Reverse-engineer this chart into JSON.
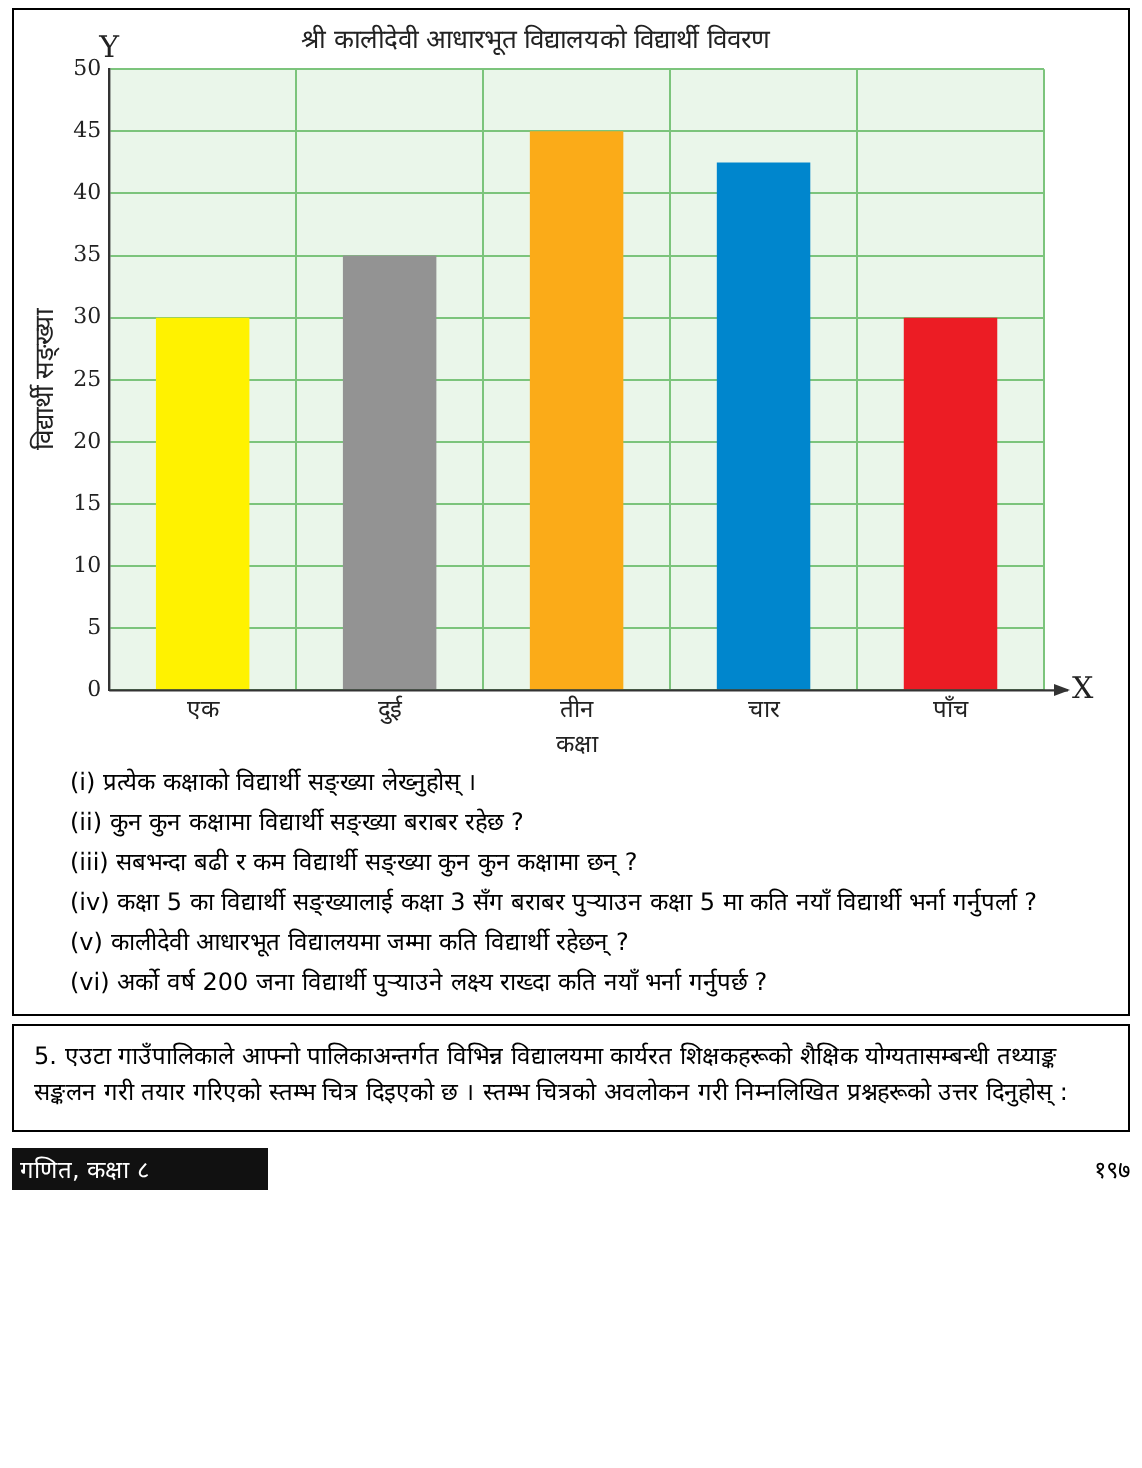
{
  "chart_data": {
    "type": "bar",
    "title": "श्री कालीदेवी आधारभूत विद्यालयको विद्यार्थी विवरण",
    "xlabel": "कक्षा",
    "ylabel": "विद्यार्थी सङ्ख्या",
    "categories": [
      "एक",
      "दुई",
      "तीन",
      "चार",
      "पाँच"
    ],
    "values": [
      30,
      35,
      45,
      42.5,
      30
    ],
    "colors": [
      "#fff200",
      "#939393",
      "#fbab18",
      "#0086cd",
      "#ec1c24"
    ],
    "ylim": [
      0,
      50
    ],
    "yticks": [
      0,
      5,
      10,
      15,
      20,
      25,
      30,
      35,
      40,
      45,
      50
    ],
    "grid": true,
    "annotations": [
      "Y",
      "X",
      "(i) प्रत्येक कक्षाको विद्यार्थी सङ्ख्या लेख्नुहोस् ।",
      "(ii) कुन कुन कक्षामा विद्यार्थी सङ्ख्या बराबर रहेछ ?",
      "(iii) सबभन्दा बढी र कम विद्यार्थी सङ्ख्या कुन कुन कक्षामा छन् ?",
      "(iv) कक्षा 5 का विद्यार्थी सङ्ख्यालाई कक्षा 3 सँग बराबर पुऱ्याउन कक्षा 5 मा कति नयाँ विद्यार्थी भर्ना गर्नुपर्ला ?",
      "(v) कालीदेवी आधारभूत विद्यालयमा जम्मा कति विद्यार्थी रहेछन् ?",
      "(vi) अर्को वर्ष 200 जना विद्यार्थी पुऱ्याउने लक्ष्य राख्दा कति नयाँ भर्ना गर्नुपर्छ ?",
      "5.  एउटा गाउँपालिकाले आफ्नो पालिकाअन्तर्गत विभिन्न विद्यालयमा कार्यरत शिक्षकहरूको शैक्षिक योग्यतासम्बन्धी तथ्याङ्क सङ्कलन गरी तयार गरिएको स्तम्भ चित्र दिइएको छ । स्तम्भ चित्रको अवलोकन गरी निम्नलिखित प्रश्नहरूको उत्तर दिनुहोस् :",
      "गणित, कक्षा ८",
      "१९७"
    ]
  }
}
